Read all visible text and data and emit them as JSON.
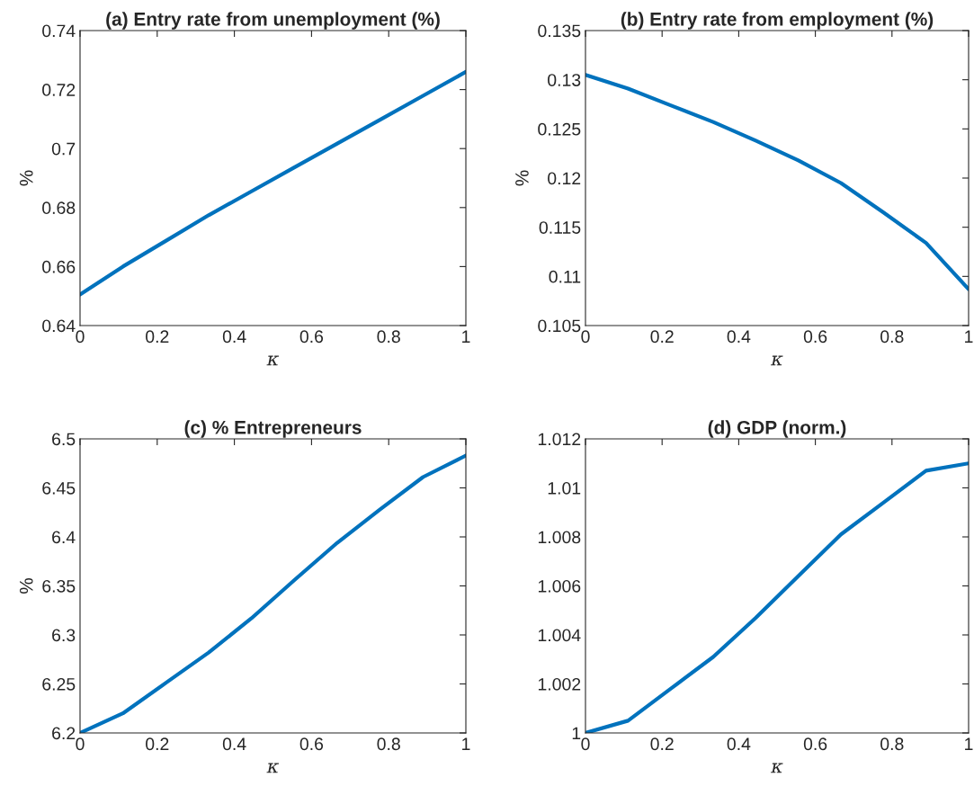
{
  "chart_data": [
    {
      "type": "line",
      "title": "(a) Entry rate from unemployment (%)",
      "xlabel": "κ",
      "ylabel": "%",
      "x": [
        0,
        0.1111,
        0.2222,
        0.3333,
        0.4444,
        0.5556,
        0.6667,
        0.7778,
        0.8889,
        1
      ],
      "series": [
        {
          "color": "#0072bd",
          "values": [
            0.6505,
            0.66,
            0.6687,
            0.6774,
            0.6855,
            0.6936,
            0.7017,
            0.7098,
            0.7179,
            0.726
          ]
        }
      ],
      "xlim": [
        0,
        1
      ],
      "xticks": [
        0,
        0.2,
        0.4,
        0.6,
        0.8,
        1
      ],
      "ylim": [
        0.64,
        0.74
      ],
      "yticks": [
        0.64,
        0.66,
        0.68,
        0.7,
        0.72,
        0.74
      ],
      "grid": false,
      "line_style": "solid"
    },
    {
      "type": "line",
      "title": "(b) Entry rate from employment (%)",
      "xlabel": "κ",
      "ylabel": "%",
      "x": [
        0,
        0.1111,
        0.2222,
        0.3333,
        0.4444,
        0.5556,
        0.6667,
        0.7778,
        0.8889,
        1
      ],
      "series": [
        {
          "color": "#0072bd",
          "values": [
            0.1305,
            0.1291,
            0.1274,
            0.1257,
            0.1238,
            0.1218,
            0.1195,
            0.1165,
            0.1134,
            0.1087
          ]
        }
      ],
      "xlim": [
        0,
        1
      ],
      "xticks": [
        0,
        0.2,
        0.4,
        0.6,
        0.8,
        1
      ],
      "ylim": [
        0.105,
        0.135
      ],
      "yticks": [
        0.105,
        0.11,
        0.115,
        0.12,
        0.125,
        0.13,
        0.135
      ],
      "grid": false,
      "line_style": "solid"
    },
    {
      "type": "line",
      "title": "(c) % Entrepreneurs",
      "xlabel": "κ",
      "ylabel": "%",
      "x": [
        0,
        0.1111,
        0.2222,
        0.3333,
        0.4444,
        0.5556,
        0.6667,
        0.7778,
        0.8889,
        1
      ],
      "series": [
        {
          "color": "#0072bd",
          "values": [
            6.2,
            6.22,
            6.251,
            6.282,
            6.317,
            6.356,
            6.394,
            6.428,
            6.461,
            6.483
          ]
        }
      ],
      "xlim": [
        0,
        1
      ],
      "xticks": [
        0,
        0.2,
        0.4,
        0.6,
        0.8,
        1
      ],
      "ylim": [
        6.2,
        6.5
      ],
      "yticks": [
        6.2,
        6.25,
        6.3,
        6.35,
        6.4,
        6.45,
        6.5
      ],
      "grid": false,
      "line_style": "solid"
    },
    {
      "type": "line",
      "title": "(d) GDP (norm.)",
      "xlabel": "κ",
      "x": [
        0,
        0.1111,
        0.2222,
        0.3333,
        0.4444,
        0.5556,
        0.6667,
        0.7778,
        0.8889,
        1
      ],
      "series": [
        {
          "color": "#0072bd",
          "values": [
            1.0,
            1.0005,
            1.0018,
            1.0031,
            1.0047,
            1.0064,
            1.0081,
            1.0094,
            1.0107,
            1.011
          ]
        }
      ],
      "xlim": [
        0,
        1
      ],
      "xticks": [
        0,
        0.2,
        0.4,
        0.6,
        0.8,
        1
      ],
      "ylim": [
        1,
        1.012
      ],
      "yticks": [
        1,
        1.002,
        1.004,
        1.006,
        1.008,
        1.01,
        1.012
      ],
      "grid": false,
      "line_style": "solid"
    }
  ]
}
